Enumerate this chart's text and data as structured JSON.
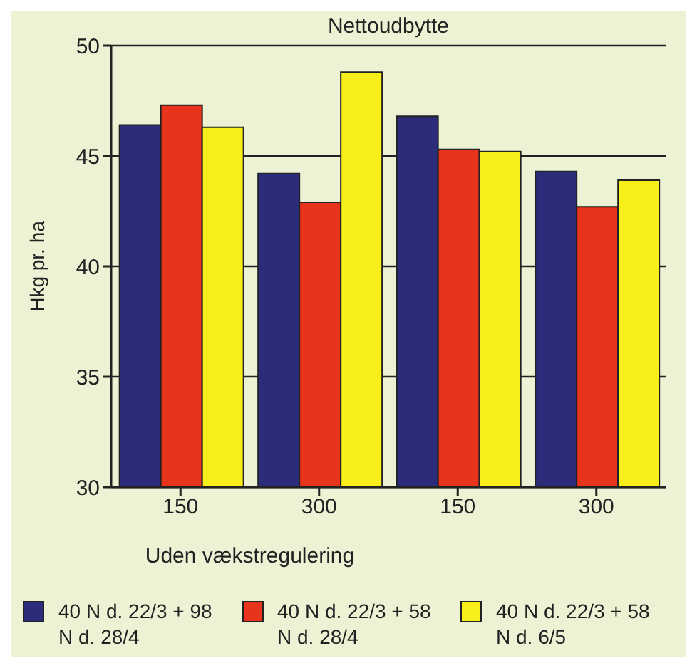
{
  "chart_data": {
    "type": "bar",
    "title": "Nettoudbytte",
    "ylabel": "Hkg pr. ha",
    "categories": [
      "150",
      "300",
      "150",
      "300"
    ],
    "series": [
      {
        "name": "40 N d. 22/3 + 98 N d. 28/4",
        "color": "#2b2d7a",
        "values": [
          46.4,
          44.2,
          46.8,
          44.3
        ]
      },
      {
        "name": "40 N d. 22/3 + 58 N d. 28/4",
        "color": "#e8341c",
        "values": [
          47.3,
          42.9,
          45.3,
          42.7
        ]
      },
      {
        "name": "40 N d. 22/3 + 58 N d. 6/5",
        "color": "#f7ee1a",
        "values": [
          46.3,
          48.8,
          45.2,
          43.9
        ]
      }
    ],
    "ylim": [
      30,
      50
    ],
    "yticks": [
      30,
      35,
      40,
      45,
      50
    ],
    "grid": "y",
    "legend": "bottom",
    "annotations": [
      "Uden vækstregulering"
    ]
  }
}
